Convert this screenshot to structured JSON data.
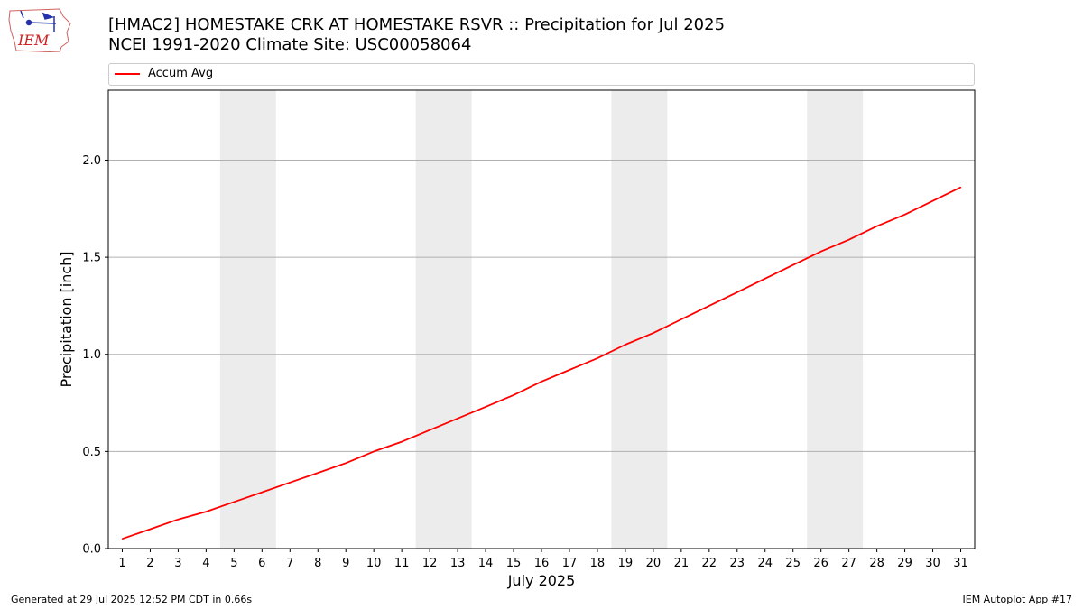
{
  "header": {
    "title_line1": "[HMAC2] HOMESTAKE CRK AT HOMESTAKE RSVR :: Precipitation for Jul 2025",
    "title_line2": "NCEI 1991-2020 Climate Site: USC00058064",
    "logo_text": "IEM"
  },
  "legend": {
    "label": "Accum Avg",
    "color": "#ff0000"
  },
  "footer": {
    "left": "Generated at 29 Jul 2025 12:52 PM CDT in 0.66s",
    "right": "IEM Autoplot App #17"
  },
  "colors": {
    "line": "#ff0000",
    "weekend_band": "#ececec",
    "grid": "#b0b0b0"
  },
  "chart_data": {
    "type": "line",
    "xlabel": "July 2025",
    "ylabel": "Precipitation [inch]",
    "xlim": [
      0.5,
      31.5
    ],
    "ylim": [
      0,
      2.36
    ],
    "yticks": [
      0.0,
      0.5,
      1.0,
      1.5,
      2.0
    ],
    "ytick_labels": [
      "0.0",
      "0.5",
      "1.0",
      "1.5",
      "2.0"
    ],
    "grid": "horizontal",
    "legend_position": "top",
    "shaded_days": [
      [
        5,
        6
      ],
      [
        12,
        13
      ],
      [
        19,
        20
      ],
      [
        26,
        27
      ]
    ],
    "x": [
      1,
      2,
      3,
      4,
      5,
      6,
      7,
      8,
      9,
      10,
      11,
      12,
      13,
      14,
      15,
      16,
      17,
      18,
      19,
      20,
      21,
      22,
      23,
      24,
      25,
      26,
      27,
      28,
      29,
      30,
      31
    ],
    "series": [
      {
        "name": "Accum Avg",
        "color": "#ff0000",
        "values": [
          0.05,
          0.1,
          0.15,
          0.19,
          0.24,
          0.29,
          0.34,
          0.39,
          0.44,
          0.5,
          0.55,
          0.61,
          0.67,
          0.73,
          0.79,
          0.86,
          0.92,
          0.98,
          1.05,
          1.11,
          1.18,
          1.25,
          1.32,
          1.39,
          1.46,
          1.53,
          1.59,
          1.66,
          1.72,
          1.79,
          1.86
        ]
      }
    ]
  }
}
